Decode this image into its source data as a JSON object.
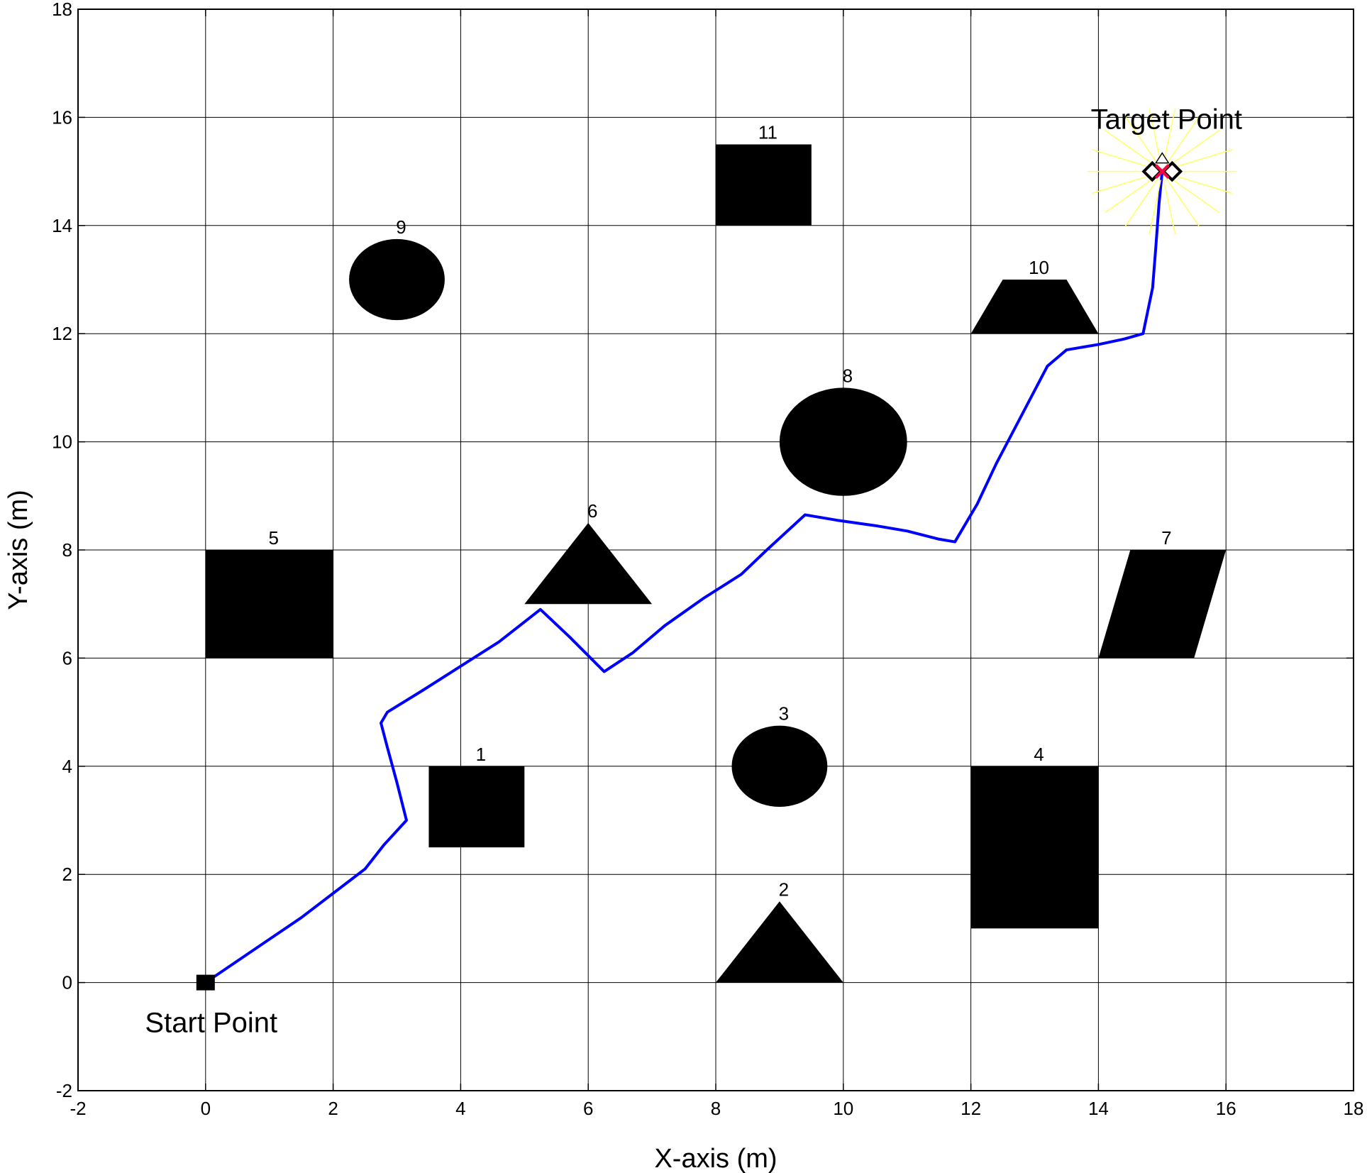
{
  "chart_data": {
    "type": "line",
    "xlabel": "X-axis (m)",
    "ylabel": "Y-axis (m)",
    "xlim": [
      -2,
      18
    ],
    "ylim": [
      -2,
      18
    ],
    "xticks": [
      -2,
      0,
      2,
      4,
      6,
      8,
      10,
      12,
      14,
      16,
      18
    ],
    "yticks": [
      -2,
      0,
      2,
      4,
      6,
      8,
      10,
      12,
      14,
      16,
      18
    ],
    "grid": true,
    "colors": {
      "path": "#0000ff",
      "obstacle": "#000000",
      "grid": "#000000",
      "burst": "#ffff66",
      "target_marker": "#ff0044"
    },
    "start": {
      "label": "Start Point",
      "x": 0,
      "y": 0
    },
    "target": {
      "label": "Target Point",
      "x": 15,
      "y": 15
    },
    "path": {
      "x": [
        0,
        0.5,
        1,
        1.5,
        2,
        2.5,
        2.8,
        3.15,
        3.0,
        2.85,
        2.75,
        2.85,
        3.4,
        4.0,
        4.6,
        5.25,
        5.7,
        6.25,
        6.7,
        7.2,
        7.8,
        8.4,
        8.8,
        9.4,
        9.9,
        10.5,
        11.0,
        11.5,
        11.75,
        12.1,
        12.4,
        12.8,
        13.2,
        13.5,
        14.0,
        14.4,
        14.7,
        14.85,
        14.9,
        14.95,
        15.0
      ],
      "y": [
        0,
        0.4,
        0.8,
        1.2,
        1.65,
        2.1,
        2.55,
        3.0,
        3.7,
        4.35,
        4.8,
        5.0,
        5.4,
        5.85,
        6.3,
        6.9,
        6.4,
        5.75,
        6.1,
        6.6,
        7.1,
        7.55,
        8.0,
        8.65,
        8.55,
        8.45,
        8.35,
        8.2,
        8.15,
        8.85,
        9.6,
        10.5,
        11.4,
        11.7,
        11.8,
        11.9,
        12.0,
        12.85,
        13.6,
        14.4,
        15.0
      ]
    },
    "obstacles": [
      {
        "label": "1",
        "shape": "rect",
        "points": [
          [
            3.5,
            2.5
          ],
          [
            5,
            2.5
          ],
          [
            5,
            4
          ],
          [
            3.5,
            4
          ]
        ]
      },
      {
        "label": "2",
        "shape": "triangle",
        "points": [
          [
            8,
            0
          ],
          [
            10,
            0
          ],
          [
            9,
            1.5
          ]
        ]
      },
      {
        "label": "3",
        "shape": "ellipse",
        "cx": 9,
        "cy": 4,
        "rx": 0.75,
        "ry": 0.75
      },
      {
        "label": "4",
        "shape": "rect",
        "points": [
          [
            12,
            1
          ],
          [
            14,
            1
          ],
          [
            14,
            4
          ],
          [
            12,
            4
          ]
        ]
      },
      {
        "label": "5",
        "shape": "rect",
        "points": [
          [
            0,
            6
          ],
          [
            2,
            6
          ],
          [
            2,
            8
          ],
          [
            0,
            8
          ]
        ]
      },
      {
        "label": "6",
        "shape": "triangle",
        "points": [
          [
            5,
            7
          ],
          [
            7,
            7
          ],
          [
            6,
            8.5
          ]
        ]
      },
      {
        "label": "7",
        "shape": "parallelogram",
        "points": [
          [
            14,
            6
          ],
          [
            15.5,
            6
          ],
          [
            16,
            8
          ],
          [
            14.5,
            8
          ]
        ]
      },
      {
        "label": "8",
        "shape": "ellipse",
        "cx": 10,
        "cy": 10,
        "rx": 1,
        "ry": 1
      },
      {
        "label": "9",
        "shape": "ellipse",
        "cx": 3,
        "cy": 13,
        "rx": 0.75,
        "ry": 0.75
      },
      {
        "label": "10",
        "shape": "trapezoid",
        "points": [
          [
            12,
            12
          ],
          [
            14,
            12
          ],
          [
            13.5,
            13
          ],
          [
            12.5,
            13
          ]
        ]
      },
      {
        "label": "11",
        "shape": "rect",
        "points": [
          [
            8,
            14
          ],
          [
            9.5,
            14
          ],
          [
            9.5,
            15.5
          ],
          [
            8,
            15.5
          ]
        ]
      }
    ]
  }
}
